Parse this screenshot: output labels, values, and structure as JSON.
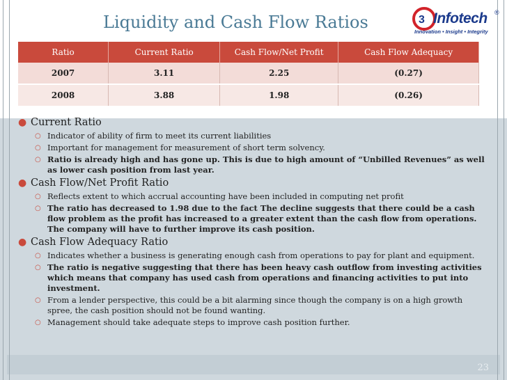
{
  "title": "Liquidity and Cash Flow Ratios",
  "logo": {
    "name": "Infotech",
    "tagline": "Innovation • Insight • Integrity",
    "registered": "®"
  },
  "table": {
    "headers": [
      "Ratio",
      "Current Ratio",
      "Cash Flow/Net Profit",
      "Cash Flow Adequacy"
    ],
    "rows": [
      [
        "2007",
        "3.11",
        "2.25",
        "(0.27)"
      ],
      [
        "2008",
        "3.88",
        "1.98",
        "(0.26)"
      ]
    ]
  },
  "bullets": [
    {
      "heading": "Current Ratio",
      "points": [
        {
          "text": "Indicator of ability of firm to meet its current liabilities"
        },
        {
          "text": "Important for management for measurement of  short term solvency."
        },
        {
          "text": "Ratio is already high and has  gone up. This is due to high amount of “Unbilled Revenues”  as well as lower cash position from last year."
        }
      ]
    },
    {
      "heading": "Cash Flow/Net Profit Ratio",
      "points": [
        {
          "text": "Reflects extent to which accrual accounting have been included in computing net profit"
        },
        {
          "text": "The ratio has decreased to 1.98 due to the fact The decline suggests that there could be a cash flow problem as the profit has increased to a greater extent than the cash flow from operations. The company will have to further improve its cash position."
        }
      ]
    },
    {
      "heading": "Cash Flow Adequacy Ratio",
      "points": [
        {
          "text": "Indicates whether a business is generating enough cash from operations to pay for plant and equipment."
        },
        {
          "text": "The ratio is negative suggesting that there has been heavy cash outflow from investing activities which means that company has used cash from operations and financing activities to put into investment."
        },
        {
          "text": "From a lender perspective, this could be a bit alarming since though the company is on a high growth spree, the cash position should not be found wanting."
        },
        {
          "text": "Management should take adequate steps to improve cash position further."
        }
      ]
    }
  ],
  "page_number": "23",
  "colors": {
    "accent": "#c94a3c",
    "title": "#4a7a95",
    "body_bg": "#cfd8de",
    "logo": "#1b3a8c"
  }
}
